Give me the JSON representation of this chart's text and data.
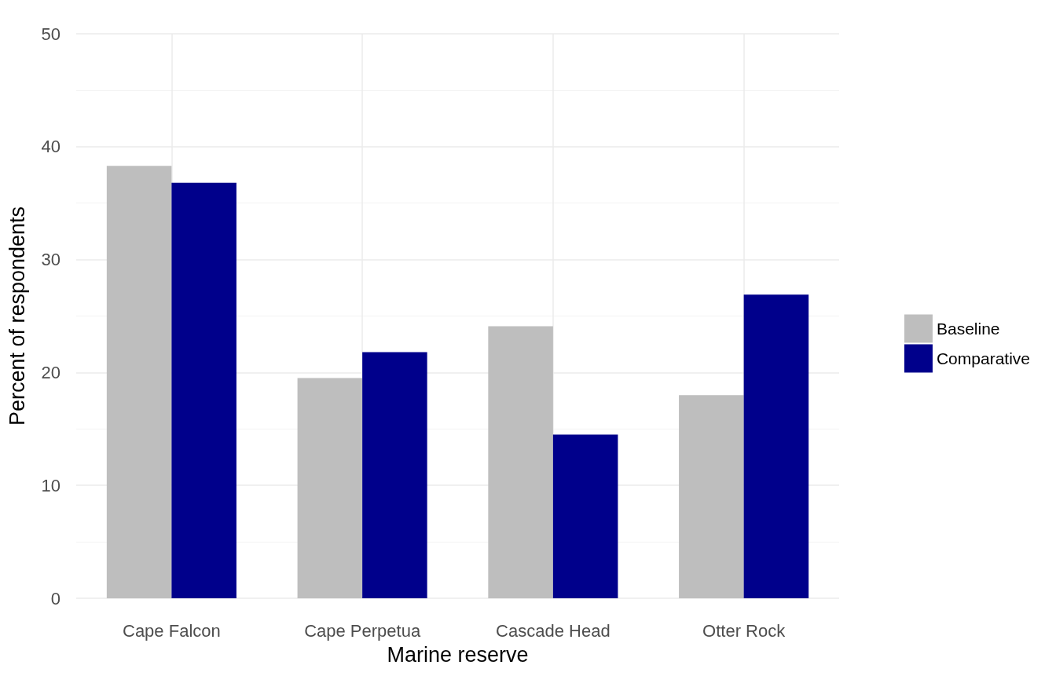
{
  "chart_data": {
    "type": "bar",
    "xlabel": "Marine reserve",
    "ylabel": "Percent of respondents",
    "categories": [
      "Cape Falcon",
      "Cape Perpetua",
      "Cascade Head",
      "Otter Rock"
    ],
    "series": [
      {
        "name": "Baseline",
        "color": "#bebebe",
        "values": [
          38.3,
          19.5,
          24.1,
          18.0
        ]
      },
      {
        "name": "Comparative",
        "color": "#00008b",
        "values": [
          36.8,
          21.8,
          14.5,
          26.9
        ]
      }
    ],
    "ylim": [
      0,
      50
    ],
    "yticks": [
      0,
      10,
      20,
      30,
      40,
      50
    ],
    "grid": true,
    "legend": "right"
  }
}
